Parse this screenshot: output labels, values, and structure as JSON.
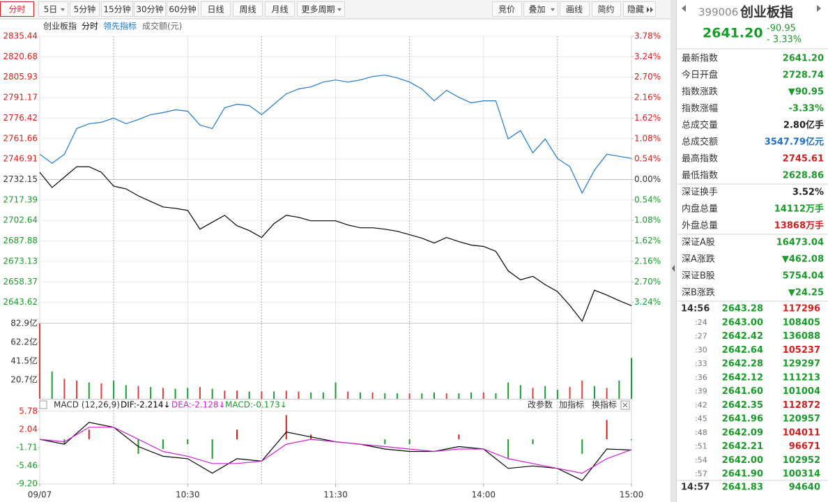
{
  "toolbar": {
    "left": [
      "分时",
      "5日",
      "5分钟",
      "15分钟",
      "30分钟",
      "60分钟",
      "日线",
      "周线",
      "月线",
      "更多周期"
    ],
    "right": [
      "竞价",
      "叠加",
      "画线",
      "简约",
      "隐藏"
    ]
  },
  "chart_data": [
    {
      "type": "line",
      "title": "分时",
      "x": [
        0,
        5,
        10,
        15,
        20,
        25,
        30,
        35,
        40,
        45,
        50,
        55,
        60,
        65,
        70,
        75,
        80,
        85,
        90,
        95,
        100,
        105,
        110,
        115,
        120,
        125,
        130,
        135,
        140,
        145,
        150,
        155,
        160,
        165,
        170,
        175,
        180,
        185,
        190,
        195,
        200,
        205,
        210,
        215,
        220,
        225,
        230,
        235,
        240
      ],
      "xlim": [
        0,
        240
      ],
      "xticks": [
        {
          "value": 0,
          "label": "09/07"
        },
        {
          "value": 60,
          "label": "10:30"
        },
        {
          "value": 120,
          "label": "11:30"
        },
        {
          "value": 180,
          "label": "14:00"
        },
        {
          "value": 240,
          "label": "15:00"
        }
      ],
      "series": [
        {
          "name": "创业板指",
          "color": "#000000",
          "values": [
            2737.4,
            2726.4,
            2733.9,
            2741.4,
            2741.4,
            2737.4,
            2727.4,
            2725.4,
            2720.39,
            2716.39,
            2712.39,
            2711.39,
            2709.89,
            2696.38,
            2701.39,
            2706.39,
            2698.89,
            2695.38,
            2690.38,
            2700.39,
            2706.39,
            2704.89,
            2702.39,
            2702.39,
            2702.39,
            2699.39,
            2697.38,
            2697.38,
            2696.38,
            2694.88,
            2692.38,
            2689.88,
            2686.38,
            2690.38,
            2687.38,
            2684.88,
            2683.88,
            2680.38,
            2666.37,
            2659.87,
            2662.37,
            2656.37,
            2651.37,
            2641.36,
            2630.0,
            2652.37,
            2648.87,
            2644.86,
            2641.2
          ]
        },
        {
          "name": "领先指标",
          "color": "#1e78c8",
          "values": [
            2750.41,
            2743.9,
            2750.41,
            2768.91,
            2772.41,
            2773.42,
            2776.42,
            2772.41,
            2775.42,
            2778.92,
            2780.42,
            2782.42,
            2781.42,
            2771.41,
            2768.91,
            2783.92,
            2786.42,
            2785.42,
            2778.92,
            2786.42,
            2793.92,
            2797.42,
            2798.93,
            2802.43,
            2803.93,
            2802.43,
            2803.93,
            2806.43,
            2807.43,
            2805.43,
            2802.43,
            2797.42,
            2788.92,
            2796.42,
            2791.42,
            2787.42,
            2788.92,
            2788.92,
            2761.41,
            2767.41,
            2751.41,
            2761.41,
            2747.4,
            2741.4,
            2722.39,
            2738.9,
            2750.41,
            2748.91,
            2747.4
          ]
        }
      ],
      "ylim": [
        2628.86,
        2835.44
      ],
      "yticks": [
        2835.44,
        2820.68,
        2805.93,
        2791.17,
        2776.42,
        2761.66,
        2746.91,
        2732.15,
        2717.39,
        2702.64,
        2687.88,
        2673.13,
        2658.37,
        2643.62
      ],
      "y2lim": [
        -3.78,
        3.78
      ],
      "y2ticks": [
        {
          "value": 3.78,
          "label": "3.78%"
        },
        {
          "value": 3.24,
          "label": "3.24%"
        },
        {
          "value": 2.7,
          "label": "2.70%"
        },
        {
          "value": 2.16,
          "label": "2.16%"
        },
        {
          "value": 1.62,
          "label": "1.62%"
        },
        {
          "value": 1.08,
          "label": "1.08%"
        },
        {
          "value": 0.54,
          "label": "0.54%"
        },
        {
          "value": 0,
          "label": "0.00%"
        },
        {
          "value": -0.54,
          "label": "0.54%"
        },
        {
          "value": -1.08,
          "label": "1.08%"
        },
        {
          "value": -1.62,
          "label": "1.62%"
        },
        {
          "value": -2.16,
          "label": "2.16%"
        },
        {
          "value": -2.7,
          "label": "2.70%"
        },
        {
          "value": -3.24,
          "label": "3.24%"
        }
      ],
      "grid": true,
      "up_color": "#d21e1e",
      "down_color": "#1a9a2a"
    },
    {
      "type": "bar",
      "title": "成交额(元)",
      "x": [
        0,
        5,
        10,
        15,
        20,
        25,
        30,
        35,
        40,
        45,
        50,
        55,
        60,
        65,
        70,
        75,
        80,
        85,
        90,
        95,
        100,
        105,
        110,
        115,
        120,
        125,
        130,
        135,
        140,
        145,
        150,
        155,
        160,
        165,
        170,
        175,
        180,
        185,
        190,
        195,
        200,
        205,
        210,
        215,
        220,
        225,
        230,
        235,
        240
      ],
      "xlim": [
        0,
        240
      ],
      "values": [
        82.9,
        30,
        22,
        20,
        18,
        17,
        20,
        15,
        14,
        13,
        12,
        11,
        12,
        13,
        11,
        9,
        9,
        8,
        8,
        8,
        9,
        8,
        7,
        7,
        18,
        8,
        7,
        7,
        6,
        6,
        6,
        6,
        7,
        6,
        6,
        7,
        7,
        6,
        18,
        15,
        12,
        14,
        10,
        13,
        20,
        14,
        12,
        20,
        45
      ],
      "colors": [
        "#e03c3c",
        "#1f9a3a",
        "#e03c3c",
        "#e03c3c",
        "#1f9a3a",
        "#e03c3c",
        "#1f9a3a",
        "#1f9a3a",
        "#e03c3c",
        "#1f9a3a",
        "#e03c3c",
        "#1f9a3a",
        "#1f9a3a",
        "#e03c3c",
        "#1f9a3a",
        "#e03c3c",
        "#e03c3c",
        "#1f9a3a",
        "#e03c3c",
        "#1f9a3a",
        "#e03c3c",
        "#e03c3c",
        "#1f9a3a",
        "#1f9a3a",
        "#1f9a3a",
        "#e03c3c",
        "#1f9a3a",
        "#e03c3c",
        "#1f9a3a",
        "#1f9a3a",
        "#e03c3c",
        "#1f9a3a",
        "#1f9a3a",
        "#e03c3c",
        "#1f9a3a",
        "#1f9a3a",
        "#e03c3c",
        "#1f9a3a",
        "#1f9a3a",
        "#1f9a3a",
        "#e03c3c",
        "#1f9a3a",
        "#1f9a3a",
        "#e03c3c",
        "#e03c3c",
        "#1f9a3a",
        "#e03c3c",
        "#1f9a3a",
        "#1f9a3a"
      ],
      "ylim": [
        0,
        82.9
      ],
      "yticks": [
        {
          "value": 82.9,
          "label": "82.9亿"
        },
        {
          "value": 62.2,
          "label": "62.2亿"
        },
        {
          "value": 41.5,
          "label": "41.5亿"
        },
        {
          "value": 20.7,
          "label": "20.7亿"
        }
      ]
    },
    {
      "type": "macd",
      "title": "MACD (12,26,9)",
      "x": [
        0,
        10,
        20,
        30,
        40,
        50,
        60,
        70,
        80,
        90,
        100,
        110,
        120,
        130,
        140,
        150,
        160,
        170,
        180,
        190,
        200,
        210,
        220,
        230,
        240
      ],
      "xlim": [
        0,
        240
      ],
      "series": [
        {
          "name": "DIF:-2.214↓",
          "color": "#000000",
          "values": [
            0,
            -1,
            3.5,
            2.5,
            -1.5,
            -3.5,
            -4,
            -7,
            -4,
            -4.5,
            1.5,
            0.5,
            -0.5,
            -1,
            -2,
            -2.5,
            -2.5,
            -1.5,
            -2,
            -6,
            -5.5,
            -6,
            -8.5,
            -2,
            -2.214
          ]
        },
        {
          "name": "DEA:-2.128↓",
          "color": "#d21ed2",
          "values": [
            0,
            -0.5,
            2.5,
            2.5,
            0,
            -2.5,
            -3.5,
            -5,
            -5,
            -4.5,
            -1,
            0,
            -0.5,
            -1,
            -1.5,
            -2,
            -2.5,
            -2,
            -2,
            -4,
            -5,
            -6,
            -7,
            -4,
            -2.128
          ]
        },
        {
          "name": "MACD:-0.173↓",
          "color": "#1a9a2a",
          "bars": true,
          "values": [
            0,
            -1,
            2,
            0,
            -3,
            -2,
            -1,
            -4,
            2,
            0,
            5,
            1,
            0,
            0,
            -1,
            -1,
            0,
            1,
            0,
            -4,
            -1,
            0,
            -3,
            4,
            -0.173
          ]
        }
      ],
      "tools": [
        "改参数",
        "加指标",
        "换指标"
      ],
      "ylim": [
        -9.2,
        5.78
      ],
      "yticks": [
        5.78,
        2.04,
        -1.71,
        -5.46,
        {
          "value": -9.2,
          "label": "-9.20"
        }
      ],
      "up_color": "#d21e1e",
      "down_color": "#1a9a2a"
    }
  ],
  "panel": {
    "code": "399006",
    "name": "创业板指",
    "price": "2641.20",
    "change": "-90.95",
    "pct": "- 3.33%",
    "groups": [
      [
        {
          "label": "最新指数",
          "value": "2641.20",
          "color": "#1a9a2a"
        },
        {
          "label": "今日开盘",
          "value": "2728.74",
          "color": "#1a9a2a"
        },
        {
          "label": "指数涨跌",
          "value": "▼90.95",
          "color": "#1a9a2a"
        },
        {
          "label": "指数涨幅",
          "value": "-3.33%",
          "color": "#1a9a2a"
        },
        {
          "label": "总成交量",
          "value": "2.80亿手",
          "color": "#222222"
        },
        {
          "label": "总成交额",
          "value": "3547.79亿元",
          "color": "#1e6fc0"
        },
        {
          "label": "最高指数",
          "value": "2745.61",
          "color": "#d21e1e"
        },
        {
          "label": "最低指数",
          "value": "2628.86",
          "color": "#1a9a2a"
        }
      ],
      [
        {
          "label": "深证换手",
          "value": "3.52%",
          "color": "#222222"
        },
        {
          "label": "内盘总量",
          "value": "14112万手",
          "color": "#1a9a2a"
        },
        {
          "label": "外盘总量",
          "value": "13868万手",
          "color": "#d21e1e"
        }
      ],
      [
        {
          "label": "深证A股",
          "value": "16473.04",
          "color": "#1a9a2a"
        },
        {
          "label": "深A涨跌",
          "value": "▼462.08",
          "color": "#1a9a2a"
        },
        {
          "label": "深证B股",
          "value": "5754.04",
          "color": "#1a9a2a"
        },
        {
          "label": "深B涨跌",
          "value": "▼24.25",
          "color": "#1a9a2a"
        }
      ]
    ],
    "trades": [
      {
        "time": "14:56",
        "price": "2643.28",
        "volume": "117296",
        "color": "#d21e1e"
      },
      {
        "time": ":24",
        "price": "2643.00",
        "volume": "108405",
        "color": "#1a9a2a"
      },
      {
        "time": ":27",
        "price": "2642.42",
        "volume": "136088",
        "color": "#1a9a2a"
      },
      {
        "time": ":30",
        "price": "2642.64",
        "volume": "105237",
        "color": "#d21e1e"
      },
      {
        "time": ":33",
        "price": "2642.28",
        "volume": "129297",
        "color": "#1a9a2a"
      },
      {
        "time": ":36",
        "price": "2642.12",
        "volume": "111213",
        "color": "#1a9a2a"
      },
      {
        "time": ":39",
        "price": "2641.60",
        "volume": "101004",
        "color": "#1a9a2a"
      },
      {
        "time": ":42",
        "price": "2642.35",
        "volume": "112872",
        "color": "#d21e1e"
      },
      {
        "time": ":45",
        "price": "2641.96",
        "volume": "120957",
        "color": "#1a9a2a"
      },
      {
        "time": ":48",
        "price": "2642.09",
        "volume": "104011",
        "color": "#d21e1e"
      },
      {
        "time": ":51",
        "price": "2642.21",
        "volume": "96671",
        "color": "#d21e1e"
      },
      {
        "time": ":54",
        "price": "2642.00",
        "volume": "102952",
        "color": "#1a9a2a"
      },
      {
        "time": ":57",
        "price": "2641.90",
        "volume": "100314",
        "color": "#1a9a2a"
      },
      {
        "time": "14:57",
        "price": "2641.83",
        "volume": "94640",
        "color": "#1a9a2a"
      }
    ]
  }
}
